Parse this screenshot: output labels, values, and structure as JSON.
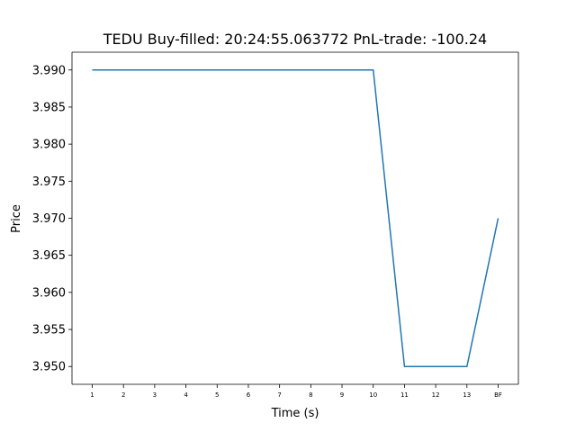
{
  "chart_data": {
    "type": "line",
    "title": "TEDU  Buy-filled:  20:24:55.063772  PnL-trade:  -100.24",
    "xlabel": "Time (s)",
    "ylabel": "Price",
    "categories": [
      "1",
      "2",
      "3",
      "4",
      "5",
      "6",
      "7",
      "8",
      "9",
      "10",
      "11",
      "12",
      "13",
      "BF"
    ],
    "series": [
      {
        "values": [
          3.99,
          3.99,
          3.99,
          3.99,
          3.99,
          3.99,
          3.99,
          3.99,
          3.99,
          3.99,
          3.95,
          3.95,
          3.95,
          3.97
        ],
        "color": "#1f77b4"
      }
    ],
    "ylim": [
      3.9476,
      3.9924
    ],
    "yticks": [
      "3.950",
      "3.955",
      "3.960",
      "3.965",
      "3.970",
      "3.975",
      "3.980",
      "3.985",
      "3.990"
    ],
    "grid": false,
    "legend": "none"
  }
}
